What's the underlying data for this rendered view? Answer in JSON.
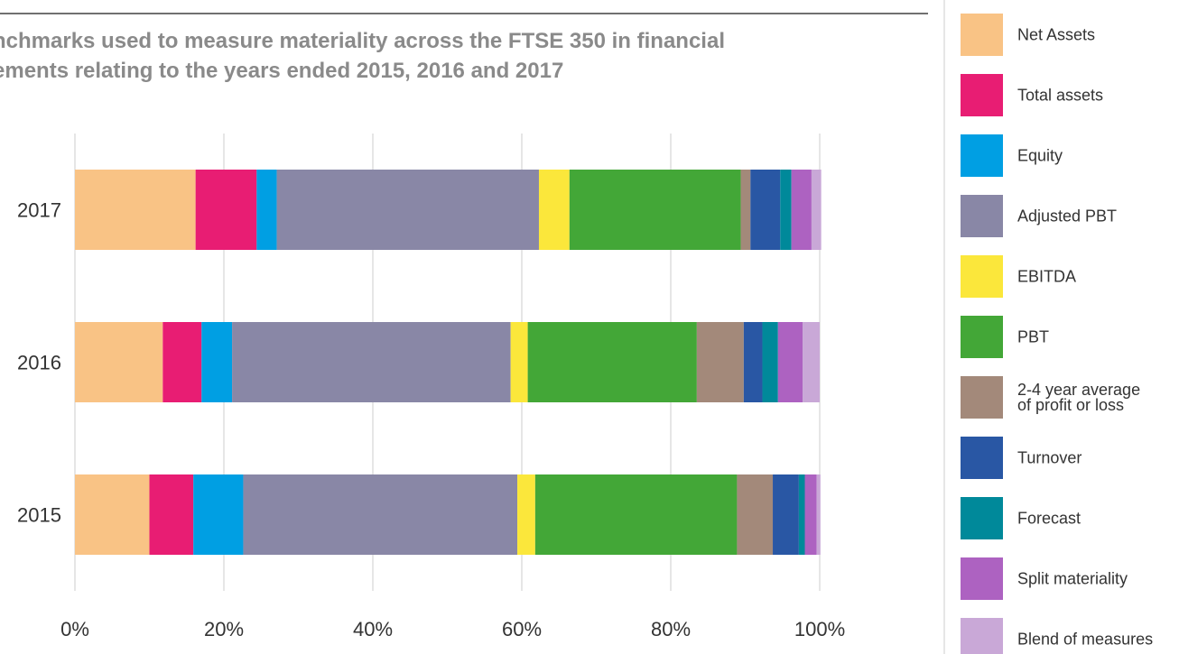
{
  "chart_data": {
    "type": "bar",
    "orientation": "horizontal",
    "stacked": true,
    "title_lines": [
      "nchmarks used to measure materiality across the FTSE 350 in financial",
      "ements relating to the years ended 2015, 2016 and 2017"
    ],
    "categories": [
      "2017",
      "2016",
      "2015"
    ],
    "x_ticks": [
      "0%",
      "20%",
      "40%",
      "60%",
      "80%",
      "100%"
    ],
    "xlim": [
      0,
      100
    ],
    "grid": "vertical",
    "legend_position": "right",
    "series": [
      {
        "name": "Net Assets",
        "color": "#f9c385",
        "values": [
          16.2,
          11.8,
          10.0
        ]
      },
      {
        "name": "Total assets",
        "color": "#e81d73",
        "values": [
          8.2,
          5.2,
          5.9
        ]
      },
      {
        "name": "Equity",
        "color": "#009fe3",
        "values": [
          2.7,
          4.1,
          6.7
        ]
      },
      {
        "name": "Adjusted PBT",
        "color": "#8987a6",
        "values": [
          35.2,
          37.4,
          36.8
        ]
      },
      {
        "name": "EBITDA",
        "color": "#fbe73b",
        "values": [
          4.1,
          2.3,
          2.4
        ]
      },
      {
        "name": "PBT",
        "color": "#43a737",
        "values": [
          23.0,
          22.7,
          27.1
        ]
      },
      {
        "name": "2-4 year average of profit or loss",
        "color": "#a3897a",
        "values": [
          1.3,
          6.3,
          4.8
        ]
      },
      {
        "name": "Turnover",
        "color": "#2957a4",
        "values": [
          4.0,
          2.5,
          3.5
        ]
      },
      {
        "name": "Forecast",
        "color": "#00899a",
        "values": [
          1.5,
          2.1,
          0.8
        ]
      },
      {
        "name": "Split materiality",
        "color": "#ad62c1",
        "values": [
          2.7,
          3.3,
          1.6
        ]
      },
      {
        "name": "Blend of measures",
        "color": "#c9a8d7",
        "values": [
          1.3,
          2.3,
          0.5
        ]
      }
    ]
  },
  "legend": {
    "entries": [
      {
        "lines": [
          "Net Assets"
        ]
      },
      {
        "lines": [
          "Total assets"
        ]
      },
      {
        "lines": [
          "Equity"
        ]
      },
      {
        "lines": [
          "Adjusted PBT"
        ]
      },
      {
        "lines": [
          "EBITDA"
        ]
      },
      {
        "lines": [
          "PBT"
        ]
      },
      {
        "lines": [
          "2-4 year average",
          "of profit or loss"
        ]
      },
      {
        "lines": [
          "Turnover"
        ]
      },
      {
        "lines": [
          "Forecast"
        ]
      },
      {
        "lines": [
          "Split materiality"
        ]
      },
      {
        "lines": [
          "Blend of measures"
        ]
      }
    ]
  },
  "colors": {
    "title": "#8a8a8a",
    "rule": "#707070",
    "grid": "#cccccc",
    "text": "#333333"
  }
}
